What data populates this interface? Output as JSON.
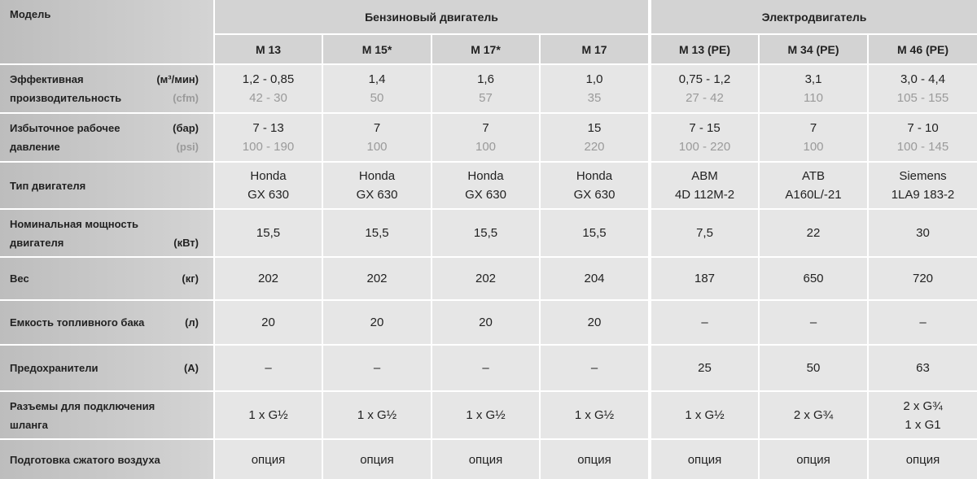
{
  "header": {
    "model_label": "Модель",
    "groups": [
      {
        "title": "Бензиновый двигатель",
        "models": [
          "M 13",
          "M 15*",
          "M 17*",
          "M 17"
        ]
      },
      {
        "title": "Электродвигатель",
        "models": [
          "M 13 (PE)",
          "M 34 (PE)",
          "M 46 (PE)"
        ]
      }
    ]
  },
  "rows": [
    {
      "lines": [
        {
          "text": "Эффективная",
          "unit": "(м³/мин)"
        },
        {
          "text": "производительность",
          "unit": "(cfm)",
          "muted": true
        }
      ],
      "muted_second": true,
      "values": [
        [
          "1,2 - 0,85",
          "42 - 30"
        ],
        [
          "1,4",
          "50"
        ],
        [
          "1,6",
          "57"
        ],
        [
          "1,0",
          "35"
        ],
        [
          "0,75 - 1,2",
          "27 - 42"
        ],
        [
          "3,1",
          "110"
        ],
        [
          "3,0 - 4,4",
          "105 - 155"
        ]
      ]
    },
    {
      "lines": [
        {
          "text": "Избыточное рабочее",
          "unit": "(бар)"
        },
        {
          "text": "давление",
          "unit": "(psi)",
          "muted": true
        }
      ],
      "muted_second": true,
      "values": [
        [
          "7 - 13",
          "100 - 190"
        ],
        [
          "7",
          "100"
        ],
        [
          "7",
          "100"
        ],
        [
          "15",
          "220"
        ],
        [
          "7 - 15",
          "100 - 220"
        ],
        [
          "7",
          "100"
        ],
        [
          "7 - 10",
          "100 - 145"
        ]
      ]
    },
    {
      "lines": [
        {
          "text": "Тип двигателя"
        }
      ],
      "values": [
        [
          "Honda",
          "GX 630"
        ],
        [
          "Honda",
          "GX 630"
        ],
        [
          "Honda",
          "GX 630"
        ],
        [
          "Honda",
          "GX 630"
        ],
        [
          "ABM",
          "4D 112M-2"
        ],
        [
          "ATB",
          "A160L/-21"
        ],
        [
          "Siemens",
          "1LA9 183-2"
        ]
      ]
    },
    {
      "lines": [
        {
          "text": "Номинальная мощность"
        },
        {
          "text": "двигателя",
          "unit": "(кВт)"
        }
      ],
      "values": [
        [
          "15,5"
        ],
        [
          "15,5"
        ],
        [
          "15,5"
        ],
        [
          "15,5"
        ],
        [
          "7,5"
        ],
        [
          "22"
        ],
        [
          "30"
        ]
      ]
    },
    {
      "lines": [
        {
          "text": "Вес",
          "unit": "(кг)"
        }
      ],
      "values": [
        [
          "202"
        ],
        [
          "202"
        ],
        [
          "202"
        ],
        [
          "204"
        ],
        [
          "187"
        ],
        [
          "650"
        ],
        [
          "720"
        ]
      ]
    },
    {
      "lines": [
        {
          "text": "Емкость топливного бака",
          "unit": "(л)"
        }
      ],
      "values": [
        [
          "20"
        ],
        [
          "20"
        ],
        [
          "20"
        ],
        [
          "20"
        ],
        [
          "–"
        ],
        [
          "–"
        ],
        [
          "–"
        ]
      ]
    },
    {
      "lines": [
        {
          "text": "Предохранители",
          "unit": "(A)"
        }
      ],
      "values": [
        [
          "–"
        ],
        [
          "–"
        ],
        [
          "–"
        ],
        [
          "–"
        ],
        [
          "25"
        ],
        [
          "50"
        ],
        [
          "63"
        ]
      ]
    },
    {
      "lines": [
        {
          "text": "Разъемы для подключения"
        },
        {
          "text": "шланга"
        }
      ],
      "values": [
        [
          "1 x G½"
        ],
        [
          "1 x G½"
        ],
        [
          "1 x G½"
        ],
        [
          "1 x G½"
        ],
        [
          "1 x G½"
        ],
        [
          "2 x G¾"
        ],
        [
          "2 x G¾",
          "1 x G1"
        ]
      ]
    },
    {
      "lines": [
        {
          "text": "Подготовка сжатого воздуха"
        }
      ],
      "values": [
        [
          "опция"
        ],
        [
          "опция"
        ],
        [
          "опция"
        ],
        [
          "опция"
        ],
        [
          "опция"
        ],
        [
          "опция"
        ],
        [
          "опция"
        ]
      ]
    }
  ]
}
